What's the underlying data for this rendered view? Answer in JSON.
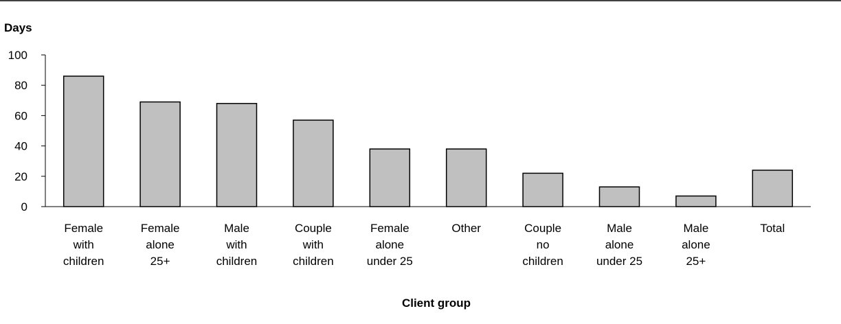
{
  "chart_data": {
    "type": "bar",
    "ylabel": "Days",
    "xlabel": "Client group",
    "ylim": [
      0,
      100
    ],
    "yticks": [
      0,
      20,
      40,
      60,
      80,
      100
    ],
    "grid": false,
    "legend": "none",
    "categories": [
      [
        "Female",
        "with",
        "children"
      ],
      [
        "Female",
        "alone",
        "25+"
      ],
      [
        "Male",
        "with",
        "children"
      ],
      [
        "Couple",
        "with",
        "children"
      ],
      [
        "Female",
        "alone",
        "under 25"
      ],
      [
        "Other"
      ],
      [
        "Couple",
        "no",
        "children"
      ],
      [
        "Male",
        "alone",
        "under 25"
      ],
      [
        "Male",
        "alone",
        "25+"
      ],
      [
        "Total"
      ]
    ],
    "values": [
      86,
      69,
      68,
      57,
      38,
      38,
      22,
      13,
      7,
      24
    ],
    "colors": {
      "bar_fill": "#c0c0c0",
      "bar_stroke": "#000000",
      "axis": "#000000"
    }
  }
}
